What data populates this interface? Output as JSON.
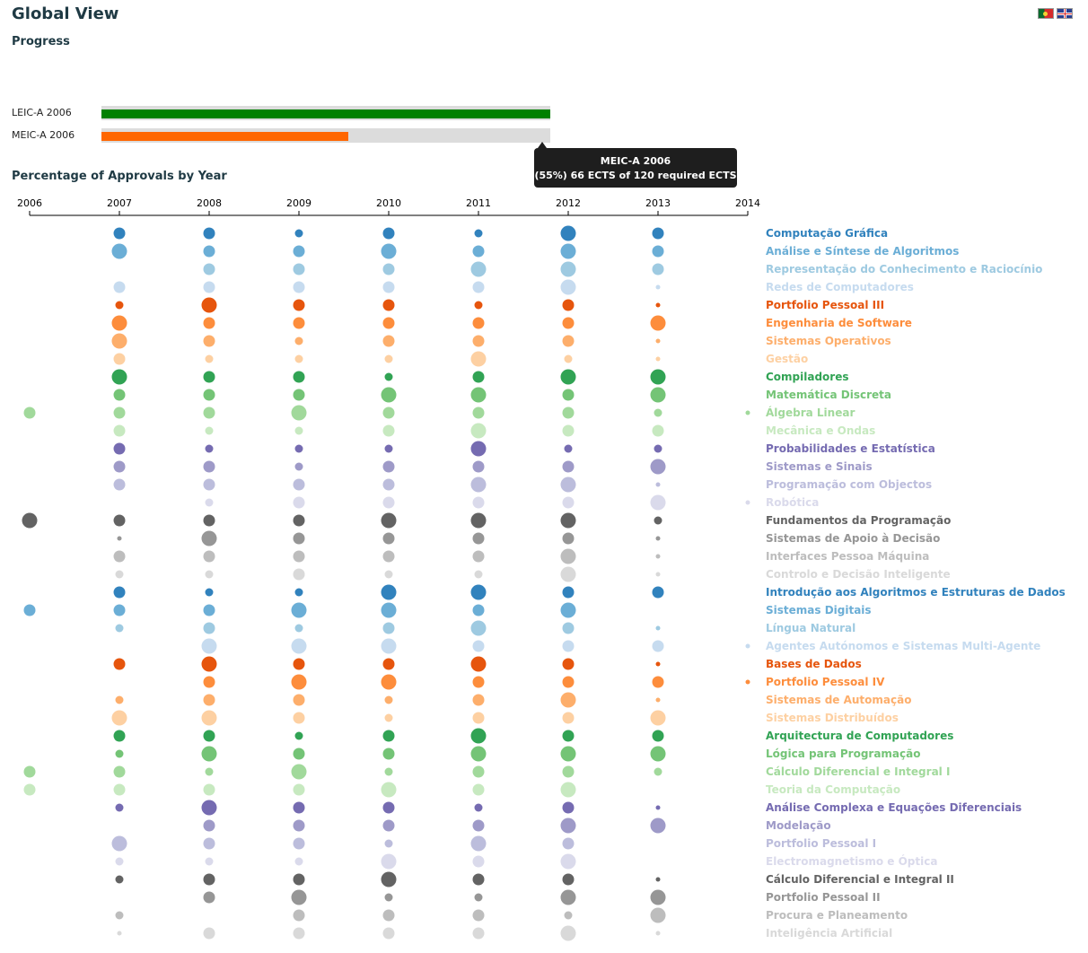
{
  "header": {
    "title": "Global View",
    "flags": [
      "pt-flag-icon",
      "uk-flag-icon"
    ]
  },
  "progress": {
    "title": "Progress",
    "degrees": [
      {
        "label": "LEIC-A 2006",
        "fraction": 1.0,
        "color": "#008000"
      },
      {
        "label": "MEIC-A 2006",
        "fraction": 0.55,
        "color": "#ff6600"
      }
    ],
    "tooltip": {
      "line1": "MEIC-A 2006",
      "line2": "(55%) 66 ECTS of 120 required ECTS"
    }
  },
  "approvals": {
    "title": "Percentage of Approvals by Year"
  },
  "chart_data": {
    "type": "scatter",
    "title": "Percentage of Approvals by Year",
    "years": [
      "2006",
      "2007",
      "2008",
      "2009",
      "2010",
      "2011",
      "2012",
      "2013",
      "2014"
    ],
    "palette": [
      "#3182bd",
      "#6baed6",
      "#9ecae1",
      "#c6dbef",
      "#e6550d",
      "#fd8d3c",
      "#fdae6b",
      "#fdd0a2",
      "#31a354",
      "#74c476",
      "#a1d99b",
      "#c7e9c0",
      "#756bb1",
      "#9e9ac8",
      "#bcbddc",
      "#dadaeb",
      "#636363",
      "#969696",
      "#bdbdbd",
      "#d9d9d9"
    ],
    "courses": [
      {
        "name": "Computação Gráfica",
        "color": "#3182bd",
        "sizes": [
          0,
          3,
          3,
          2,
          3,
          2,
          4,
          3,
          0
        ]
      },
      {
        "name": "Análise e Síntese de Algoritmos",
        "color": "#6baed6",
        "sizes": [
          0,
          4,
          3,
          3,
          4,
          3,
          4,
          3,
          0
        ]
      },
      {
        "name": "Representação do Conhecimento e Raciocínio",
        "color": "#9ecae1",
        "sizes": [
          0,
          0,
          3,
          3,
          3,
          4,
          4,
          3,
          0
        ]
      },
      {
        "name": "Redes de Computadores",
        "color": "#c6dbef",
        "sizes": [
          0,
          3,
          3,
          3,
          3,
          3,
          4,
          1,
          0
        ]
      },
      {
        "name": "Portfolio Pessoal III",
        "color": "#e6550d",
        "sizes": [
          0,
          2,
          4,
          3,
          3,
          2,
          3,
          1,
          0
        ]
      },
      {
        "name": "Engenharia de Software",
        "color": "#fd8d3c",
        "sizes": [
          0,
          4,
          3,
          3,
          3,
          3,
          3,
          4,
          0
        ]
      },
      {
        "name": "Sistemas Operativos",
        "color": "#fdae6b",
        "sizes": [
          0,
          4,
          3,
          2,
          3,
          3,
          3,
          1,
          0
        ]
      },
      {
        "name": "Gestão",
        "color": "#fdd0a2",
        "sizes": [
          0,
          3,
          2,
          2,
          2,
          4,
          2,
          1,
          0
        ]
      },
      {
        "name": "Compiladores",
        "color": "#31a354",
        "sizes": [
          0,
          4,
          3,
          3,
          2,
          3,
          4,
          4,
          0
        ]
      },
      {
        "name": "Matemática Discreta",
        "color": "#74c476",
        "sizes": [
          0,
          3,
          3,
          3,
          4,
          4,
          3,
          4,
          0
        ]
      },
      {
        "name": "Álgebra Linear",
        "color": "#a1d99b",
        "sizes": [
          3,
          3,
          3,
          4,
          3,
          3,
          3,
          2,
          1
        ]
      },
      {
        "name": "Mecânica e Ondas",
        "color": "#c7e9c0",
        "sizes": [
          0,
          3,
          2,
          2,
          3,
          4,
          3,
          3,
          0
        ]
      },
      {
        "name": "Probabilidades e Estatística",
        "color": "#756bb1",
        "sizes": [
          0,
          3,
          2,
          2,
          2,
          4,
          2,
          2,
          0
        ]
      },
      {
        "name": "Sistemas e Sinais",
        "color": "#9e9ac8",
        "sizes": [
          0,
          3,
          3,
          2,
          3,
          3,
          3,
          4,
          0
        ]
      },
      {
        "name": "Programação com Objectos",
        "color": "#bcbddc",
        "sizes": [
          0,
          3,
          3,
          3,
          3,
          4,
          4,
          1,
          0
        ]
      },
      {
        "name": "Robótica",
        "color": "#dadaeb",
        "sizes": [
          0,
          0,
          2,
          3,
          3,
          3,
          3,
          4,
          1
        ]
      },
      {
        "name": "Fundamentos da Programação",
        "color": "#636363",
        "sizes": [
          4,
          3,
          3,
          3,
          4,
          4,
          4,
          2,
          0
        ]
      },
      {
        "name": "Sistemas de Apoio à Decisão",
        "color": "#969696",
        "sizes": [
          0,
          1,
          4,
          3,
          3,
          3,
          3,
          1,
          0
        ]
      },
      {
        "name": "Interfaces Pessoa Máquina",
        "color": "#bdbdbd",
        "sizes": [
          0,
          3,
          3,
          3,
          3,
          3,
          4,
          1,
          0
        ]
      },
      {
        "name": "Controlo e Decisão Inteligente",
        "color": "#d9d9d9",
        "sizes": [
          0,
          2,
          2,
          3,
          2,
          2,
          4,
          1,
          0
        ]
      },
      {
        "name": "Introdução aos Algoritmos e Estruturas de Dados",
        "color": "#3182bd",
        "sizes": [
          0,
          3,
          2,
          2,
          4,
          4,
          3,
          3,
          0
        ]
      },
      {
        "name": "Sistemas Digitais",
        "color": "#6baed6",
        "sizes": [
          3,
          3,
          3,
          4,
          4,
          3,
          4,
          0,
          0
        ]
      },
      {
        "name": "Língua Natural",
        "color": "#9ecae1",
        "sizes": [
          0,
          2,
          3,
          2,
          3,
          4,
          3,
          1,
          0
        ]
      },
      {
        "name": "Agentes Autónomos e Sistemas Multi-Agente",
        "color": "#c6dbef",
        "sizes": [
          0,
          0,
          4,
          4,
          4,
          3,
          3,
          3,
          1
        ]
      },
      {
        "name": "Bases de Dados",
        "color": "#e6550d",
        "sizes": [
          0,
          3,
          4,
          3,
          3,
          4,
          3,
          1,
          0
        ]
      },
      {
        "name": "Portfolio Pessoal IV",
        "color": "#fd8d3c",
        "sizes": [
          0,
          0,
          3,
          4,
          4,
          3,
          3,
          3,
          1
        ]
      },
      {
        "name": "Sistemas de Automação",
        "color": "#fdae6b",
        "sizes": [
          0,
          2,
          3,
          3,
          2,
          3,
          4,
          1,
          0
        ]
      },
      {
        "name": "Sistemas Distribuídos",
        "color": "#fdd0a2",
        "sizes": [
          0,
          4,
          4,
          3,
          2,
          3,
          3,
          4,
          0
        ]
      },
      {
        "name": "Arquitectura de Computadores",
        "color": "#31a354",
        "sizes": [
          0,
          3,
          3,
          2,
          3,
          4,
          3,
          3,
          0
        ]
      },
      {
        "name": "Lógica para Programação",
        "color": "#74c476",
        "sizes": [
          0,
          2,
          4,
          3,
          3,
          4,
          4,
          4,
          0
        ]
      },
      {
        "name": "Cálculo Diferencial e Integral I",
        "color": "#a1d99b",
        "sizes": [
          3,
          3,
          2,
          4,
          2,
          3,
          3,
          2,
          0
        ]
      },
      {
        "name": "Teoria da Computação",
        "color": "#c7e9c0",
        "sizes": [
          3,
          3,
          3,
          3,
          4,
          3,
          4,
          0,
          0
        ]
      },
      {
        "name": "Análise Complexa e Equações Diferenciais",
        "color": "#756bb1",
        "sizes": [
          0,
          2,
          4,
          3,
          3,
          2,
          3,
          1,
          0
        ]
      },
      {
        "name": "Modelação",
        "color": "#9e9ac8",
        "sizes": [
          0,
          0,
          3,
          3,
          3,
          3,
          4,
          4,
          0
        ]
      },
      {
        "name": "Portfolio Pessoal I",
        "color": "#bcbddc",
        "sizes": [
          0,
          4,
          3,
          3,
          2,
          4,
          3,
          0,
          0
        ]
      },
      {
        "name": "Electromagnetismo e Óptica",
        "color": "#dadaeb",
        "sizes": [
          0,
          2,
          2,
          2,
          4,
          3,
          4,
          0,
          0
        ]
      },
      {
        "name": "Cálculo Diferencial e Integral II",
        "color": "#636363",
        "sizes": [
          0,
          2,
          3,
          3,
          4,
          3,
          3,
          1,
          0
        ]
      },
      {
        "name": "Portfolio Pessoal II",
        "color": "#969696",
        "sizes": [
          0,
          0,
          3,
          4,
          2,
          2,
          4,
          4,
          0
        ]
      },
      {
        "name": "Procura e Planeamento",
        "color": "#bdbdbd",
        "sizes": [
          0,
          2,
          0,
          3,
          3,
          3,
          2,
          4,
          0
        ]
      },
      {
        "name": "Inteligência Artificial",
        "color": "#d9d9d9",
        "sizes": [
          0,
          1,
          3,
          3,
          3,
          3,
          4,
          1,
          0
        ]
      }
    ]
  }
}
